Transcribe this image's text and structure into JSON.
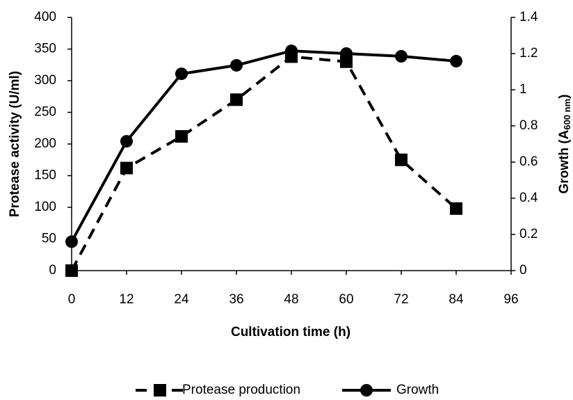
{
  "chart_data": {
    "type": "line",
    "x_label": "Cultivation time (h)",
    "y_label": "Protease activity (U/ml)",
    "y2_label": [
      "Growth (A",
      "600 nm",
      ")"
    ],
    "x": [
      0,
      12,
      24,
      36,
      48,
      60,
      72,
      84
    ],
    "xlim": [
      0,
      96
    ],
    "xticks": [
      0,
      12,
      24,
      36,
      48,
      60,
      72,
      84,
      96
    ],
    "ylim": [
      0,
      400
    ],
    "yticks": [
      0,
      50,
      100,
      150,
      200,
      250,
      300,
      350,
      400
    ],
    "y2lim": [
      0,
      1.4
    ],
    "y2ticks": [
      0,
      0.2,
      0.4,
      0.6,
      0.8,
      1,
      1.2,
      1.4
    ],
    "legend": "bottom",
    "series": [
      {
        "name": "Protease production",
        "color": "#000000",
        "dash": true,
        "marker": "square",
        "values": [
          0,
          162,
          212,
          270,
          338,
          330,
          175,
          98
        ]
      },
      {
        "name": "Growth",
        "color": "#000000",
        "dash": false,
        "marker": "circle",
        "axis": "y2",
        "values": [
          0.16,
          0.715,
          1.088,
          1.135,
          1.215,
          1.2,
          1.185,
          1.158
        ]
      }
    ]
  }
}
